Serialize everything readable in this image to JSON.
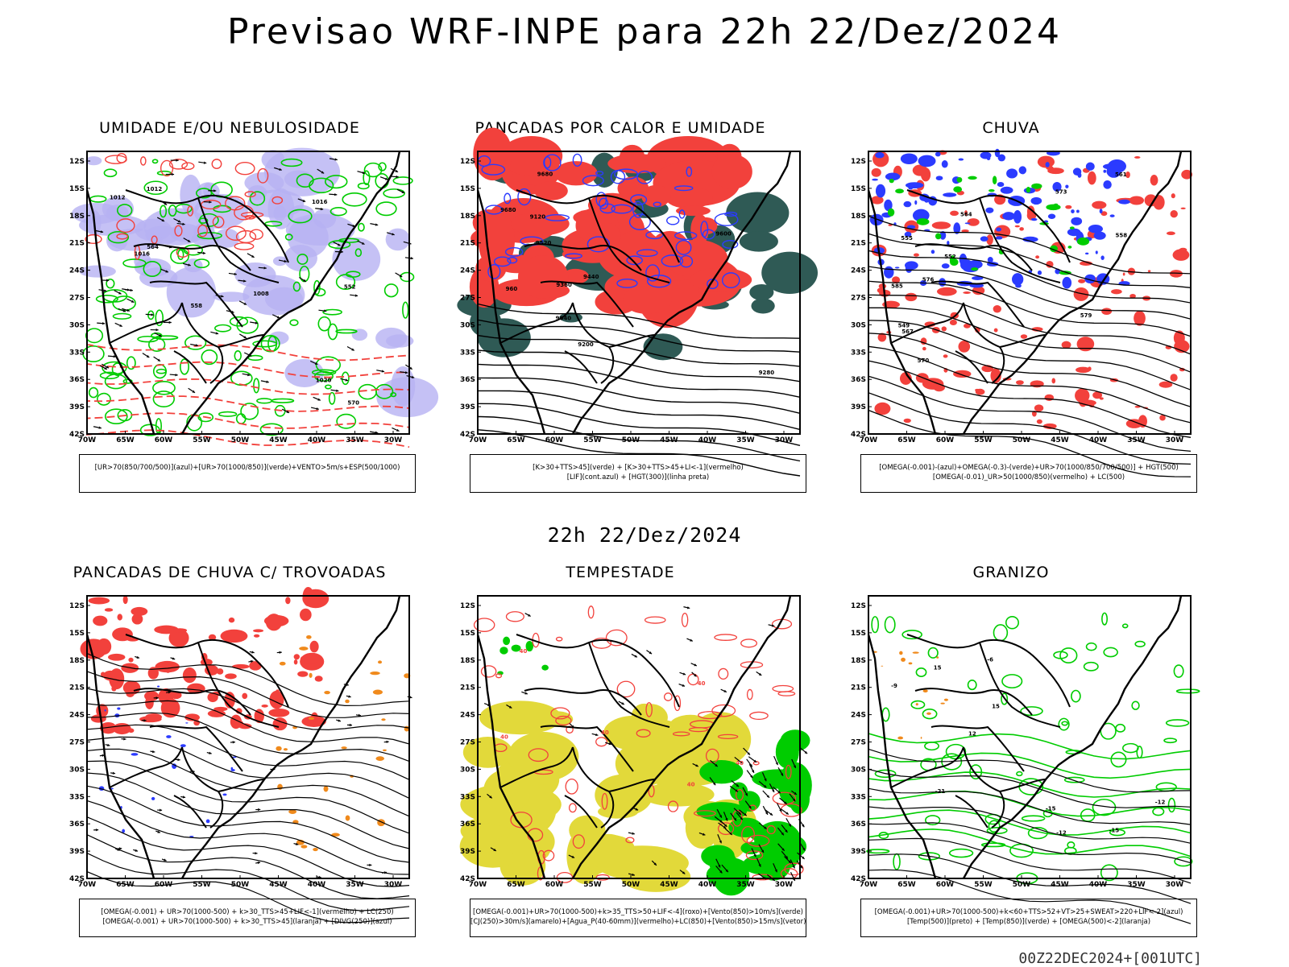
{
  "header": {
    "title": "Previsao WRF-INPE  para 22h 22/Dez/2024",
    "middle_stamp": "22h 22/Dez/2024",
    "run_stamp": "00Z22DEC2024+[001UTC]"
  },
  "axes": {
    "lat_labels": [
      "12S",
      "15S",
      "18S",
      "21S",
      "24S",
      "27S",
      "30S",
      "33S",
      "36S",
      "39S",
      "42S"
    ],
    "lon_labels": [
      "70W",
      "65W",
      "60W",
      "55W",
      "50W",
      "45W",
      "40W",
      "35W",
      "30W"
    ]
  },
  "colors": {
    "red": "#f2413c",
    "green": "#00cc00",
    "blue": "#2b3bff",
    "lavender": "#b7b2f2",
    "darkteal": "#2f5a55",
    "yellow": "#e2d93a",
    "orange": "#f08a1c",
    "black": "#000000"
  },
  "panels": [
    {
      "id": "umidade",
      "title": "UMIDADE E/OU NEBULOSIDADE",
      "legend": [
        "[UR>70(850/700/500)](azul)+[UR>70(1000/850)](verde)+VENTO>5m/s+ESP(500/1000)"
      ],
      "contour_labels": [
        "1012",
        "1016",
        "1008",
        "1020",
        "570",
        "564",
        "558",
        "552",
        "1016",
        "1012"
      ]
    },
    {
      "id": "pancadas-calor",
      "title": "PANCADAS POR CALOR E UMIDADE",
      "legend": [
        "[K>30+TTS>45](verde) + [K>30+TTS>45+LI<-1](vermelho)",
        "[LIF](cont.azul) + [HGT(300)](linha preta)"
      ],
      "contour_labels": [
        "9680",
        "9680",
        "9600",
        "9520",
        "9440",
        "9360",
        "9280",
        "9200",
        "9120",
        "9040",
        "960"
      ]
    },
    {
      "id": "chuva",
      "title": "CHUVA",
      "legend": [
        "[OMEGA(-0.001)-(azul)+OMEGA(-0.3)-(verde)+UR>70(1000/850/700/500)] + HGT(500)",
        "[OMEGA(-0.01)_UR>50(1000/850)(vermelho) + LC(500)"
      ],
      "contour_labels": [
        "585",
        "579",
        "576",
        "573",
        "570",
        "567",
        "564",
        "561",
        "558",
        "555",
        "552",
        "549"
      ]
    },
    {
      "id": "pancadas-trovoadas",
      "title": "PANCADAS DE CHUVA C/ TROVOADAS",
      "legend": [
        "[OMEGA(-0.001) + UR>70(1000-500) + k>30_TTS>45+LIF<-1](vermelho) + LC(250)",
        "[OMEGA(-0.001) + UR>70(1000-500) + k>30_TTS>45](laranja) + [DIVG(250)](azul)"
      ],
      "contour_labels": []
    },
    {
      "id": "tempestade",
      "title": "TEMPESTADE",
      "legend": [
        "[OMEGA(-0.001)+UR>70(1000-500)+k>35_TTS>50+LIF<-4](roxo)+[Vento(850)>10m/s](verde)",
        "[CJ(250)>30m/s](amarelo)+[Agua_P(40-60mm)](vermelho)+LC(850)+[Vento(850)>15m/s](vetor)"
      ],
      "contour_labels": [
        "40",
        "40",
        "40",
        "40",
        "40",
        "40"
      ]
    },
    {
      "id": "granizo",
      "title": "GRANIZO",
      "legend": [
        "[OMEGA(-0.001)+UR>70(1000-500)+k<60+TTS>52+VT>25+SWEAT>220+LIF<-2](azul)",
        "[Temp(500)](preto) + [Temp(850)](verde) + [OMEGA(500)<-2](laranja)"
      ],
      "contour_labels": [
        "-9",
        "-12",
        "-15",
        "-12",
        "-15",
        "-21",
        "-6",
        "15",
        "12",
        "15"
      ]
    }
  ]
}
